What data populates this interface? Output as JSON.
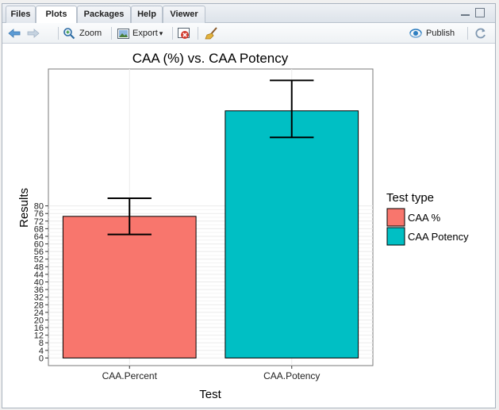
{
  "tabs": [
    {
      "label": "Files",
      "active": false
    },
    {
      "label": "Plots",
      "active": true
    },
    {
      "label": "Packages",
      "active": false
    },
    {
      "label": "Help",
      "active": false
    },
    {
      "label": "Viewer",
      "active": false
    }
  ],
  "toolbar": {
    "zoom_label": "Zoom",
    "export_label": "Export",
    "export_caret": "▾",
    "publish_label": "Publish",
    "back_icon": "arrow-left-icon",
    "forward_icon": "arrow-right-icon",
    "zoom_icon": "magnifier-icon",
    "export_icon": "image-icon",
    "remove_icon": "remove-plot-icon",
    "clear_icon": "broom-icon",
    "publish_icon": "publish-icon",
    "refresh_icon": "refresh-icon"
  },
  "chart_data": {
    "type": "bar",
    "title": "CAA (%) vs. CAA Potency",
    "xlabel": "Test",
    "ylabel": "Results",
    "categories": [
      "CAA.Percent",
      "CAA.Potency"
    ],
    "values": [
      74.5,
      130
    ],
    "error_low": [
      65,
      116
    ],
    "error_high": [
      84,
      146
    ],
    "colors": [
      "#F8766D",
      "#00BFC4"
    ],
    "ylim": [
      -4,
      152
    ],
    "yticks": [
      0,
      4,
      8,
      12,
      16,
      20,
      24,
      28,
      32,
      36,
      40,
      44,
      48,
      52,
      56,
      60,
      64,
      68,
      72,
      76,
      80
    ],
    "grid": true,
    "legend": {
      "title": "Test type",
      "placement": "right",
      "entries": [
        {
          "label": "CAA %",
          "color": "#F8766D"
        },
        {
          "label": "CAA Potency",
          "color": "#00BFC4"
        }
      ]
    }
  }
}
